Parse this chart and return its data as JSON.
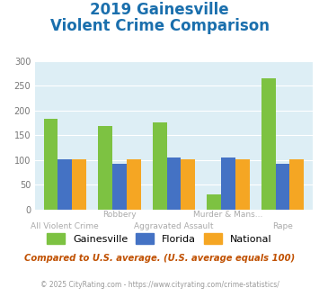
{
  "title_line1": "2019 Gainesville",
  "title_line2": "Violent Crime Comparison",
  "categories_top": [
    "",
    "Robbery",
    "",
    "Murder & Mans...",
    ""
  ],
  "categories_bottom": [
    "All Violent Crime",
    "",
    "Aggravated Assault",
    "",
    "Rape"
  ],
  "gainesville": [
    183,
    168,
    175,
    30,
    265
  ],
  "florida": [
    101,
    93,
    105,
    105,
    93
  ],
  "national": [
    102,
    102,
    101,
    101,
    101
  ],
  "color_gainesville": "#7dc242",
  "color_florida": "#4472c4",
  "color_national": "#f5a623",
  "ylim": [
    0,
    300
  ],
  "yticks": [
    0,
    50,
    100,
    150,
    200,
    250,
    300
  ],
  "background_color": "#ddeef5",
  "fig_background": "#ffffff",
  "footer_text": "Compared to U.S. average. (U.S. average equals 100)",
  "copyright_text": "© 2025 CityRating.com - https://www.cityrating.com/crime-statistics/",
  "title_color": "#1a6fad",
  "footer_color": "#c05000",
  "copyright_color": "#999999",
  "legend_labels": [
    "Gainesville",
    "Florida",
    "National"
  ],
  "title_fontsize": 12,
  "tick_color": "#aaaaaa"
}
